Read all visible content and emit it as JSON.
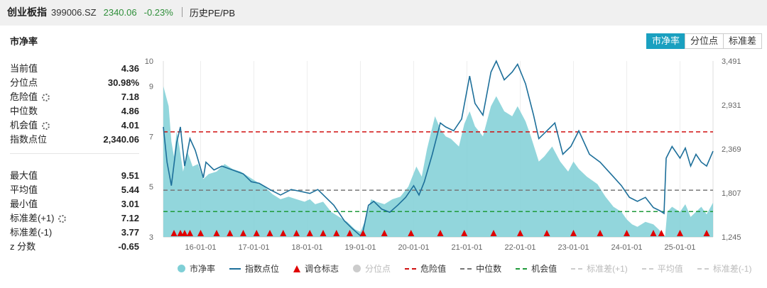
{
  "header": {
    "name": "创业板指",
    "code": "399006.SZ",
    "price": "2340.06",
    "change": "-0.23%",
    "link": "历史PE/PB"
  },
  "panel": {
    "title": "市净率",
    "tabs": [
      {
        "label": "市净率",
        "active": true
      },
      {
        "label": "分位点",
        "active": false
      },
      {
        "label": "标准差",
        "active": false
      }
    ]
  },
  "stats_top": [
    {
      "label": "当前值",
      "value": "4.36",
      "gear": false
    },
    {
      "label": "分位点",
      "value": "30.98%",
      "gear": false
    },
    {
      "label": "危险值",
      "value": "7.18",
      "gear": true
    },
    {
      "label": "中位数",
      "value": "4.86",
      "gear": false
    },
    {
      "label": "机会值",
      "value": "4.01",
      "gear": true
    },
    {
      "label": "指数点位",
      "value": "2,340.06",
      "gear": false
    }
  ],
  "stats_bottom": [
    {
      "label": "最大值",
      "value": "9.51",
      "gear": false
    },
    {
      "label": "平均值",
      "value": "5.44",
      "gear": false
    },
    {
      "label": "最小值",
      "value": "3.01",
      "gear": false
    },
    {
      "label": "标准差(+1)",
      "value": "7.12",
      "gear": true
    },
    {
      "label": "标准差(-1)",
      "value": "3.77",
      "gear": false
    },
    {
      "label": "z 分数",
      "value": "-0.65",
      "gear": false
    }
  ],
  "legend": [
    {
      "label": "市净率",
      "kind": "dot",
      "color": "#7fcfd6",
      "enabled": true
    },
    {
      "label": "指数点位",
      "kind": "line",
      "color": "#1d6f9a",
      "enabled": true
    },
    {
      "label": "调仓标志",
      "kind": "triangle",
      "color": "#e00000",
      "enabled": true
    },
    {
      "label": "分位点",
      "kind": "dot",
      "color": "#cccccc",
      "enabled": false
    },
    {
      "label": "危险值",
      "kind": "dash",
      "color": "#d01010",
      "enabled": true
    },
    {
      "label": "中位数",
      "kind": "dash",
      "color": "#777777",
      "enabled": true
    },
    {
      "label": "机会值",
      "kind": "dash",
      "color": "#1f9a3a",
      "enabled": true
    },
    {
      "label": "标准差(+1)",
      "kind": "dash",
      "color": "#cccccc",
      "enabled": false
    },
    {
      "label": "平均值",
      "kind": "dash",
      "color": "#cccccc",
      "enabled": false
    },
    {
      "label": "标准差(-1)",
      "kind": "dash",
      "color": "#cccccc",
      "enabled": false
    }
  ],
  "chart_data": {
    "type": "area",
    "x_tick_labels": [
      "16-01-01",
      "17-01-01",
      "18-01-01",
      "19-01-01",
      "20-01-01",
      "21-01-01",
      "22-01-01",
      "23-01-01",
      "24-01-01",
      "25-01-01"
    ],
    "x_tick_values": [
      2016,
      2017,
      2018,
      2019,
      2020,
      2021,
      2022,
      2023,
      2024,
      2025
    ],
    "xlim": [
      2015.3,
      2025.62
    ],
    "y_left": {
      "ticks": [
        3,
        5,
        7,
        9,
        10
      ],
      "range": [
        3,
        10
      ]
    },
    "y_right": {
      "ticks": [
        "1,245",
        "1,807",
        "2,369",
        "2,931",
        "3,491"
      ],
      "tick_values": [
        1245,
        1807,
        2369,
        2931,
        3491
      ],
      "range": [
        1245,
        3491
      ]
    },
    "reference_lines": [
      {
        "name": "危险值",
        "value": 7.18,
        "color": "#d01010"
      },
      {
        "name": "中位数",
        "value": 4.86,
        "color": "#777777"
      },
      {
        "name": "机会值",
        "value": 4.01,
        "color": "#1f9a3a"
      }
    ],
    "series": [
      {
        "name": "市净率",
        "axis": "left",
        "color": "#7fcfd6",
        "points": [
          [
            2015.3,
            9.0
          ],
          [
            2015.4,
            8.2
          ],
          [
            2015.45,
            6.8
          ],
          [
            2015.5,
            6.2
          ],
          [
            2015.55,
            7.2
          ],
          [
            2015.6,
            6.6
          ],
          [
            2015.67,
            5.6
          ],
          [
            2015.75,
            6.4
          ],
          [
            2015.85,
            5.8
          ],
          [
            2015.95,
            5.9
          ],
          [
            2016.05,
            5.3
          ],
          [
            2016.15,
            5.5
          ],
          [
            2016.3,
            5.6
          ],
          [
            2016.45,
            5.9
          ],
          [
            2016.6,
            5.7
          ],
          [
            2016.75,
            5.6
          ],
          [
            2016.9,
            5.4
          ],
          [
            2017.05,
            5.2
          ],
          [
            2017.2,
            5.0
          ],
          [
            2017.35,
            4.7
          ],
          [
            2017.5,
            4.5
          ],
          [
            2017.65,
            4.6
          ],
          [
            2017.8,
            4.5
          ],
          [
            2017.95,
            4.4
          ],
          [
            2018.05,
            4.5
          ],
          [
            2018.15,
            4.3
          ],
          [
            2018.3,
            4.4
          ],
          [
            2018.45,
            4.0
          ],
          [
            2018.6,
            3.8
          ],
          [
            2018.75,
            3.6
          ],
          [
            2018.9,
            3.3
          ],
          [
            2019.0,
            3.2
          ],
          [
            2019.1,
            3.7
          ],
          [
            2019.2,
            4.5
          ],
          [
            2019.3,
            4.4
          ],
          [
            2019.45,
            4.3
          ],
          [
            2019.6,
            4.5
          ],
          [
            2019.75,
            4.6
          ],
          [
            2019.9,
            5.0
          ],
          [
            2020.05,
            5.8
          ],
          [
            2020.15,
            5.4
          ],
          [
            2020.25,
            6.5
          ],
          [
            2020.4,
            7.8
          ],
          [
            2020.5,
            7.3
          ],
          [
            2020.6,
            7.0
          ],
          [
            2020.7,
            6.9
          ],
          [
            2020.85,
            6.6
          ],
          [
            2020.95,
            7.5
          ],
          [
            2021.05,
            8.0
          ],
          [
            2021.15,
            7.4
          ],
          [
            2021.3,
            7.0
          ],
          [
            2021.45,
            8.2
          ],
          [
            2021.55,
            8.6
          ],
          [
            2021.7,
            8.0
          ],
          [
            2021.85,
            7.8
          ],
          [
            2021.95,
            8.2
          ],
          [
            2022.1,
            7.6
          ],
          [
            2022.2,
            7.0
          ],
          [
            2022.35,
            6.0
          ],
          [
            2022.45,
            6.2
          ],
          [
            2022.6,
            6.6
          ],
          [
            2022.75,
            6.0
          ],
          [
            2022.9,
            5.6
          ],
          [
            2023.0,
            6.0
          ],
          [
            2023.1,
            5.7
          ],
          [
            2023.25,
            5.4
          ],
          [
            2023.45,
            5.1
          ],
          [
            2023.6,
            4.6
          ],
          [
            2023.75,
            4.2
          ],
          [
            2023.9,
            4.0
          ],
          [
            2024.0,
            3.7
          ],
          [
            2024.1,
            3.5
          ],
          [
            2024.2,
            3.4
          ],
          [
            2024.35,
            3.6
          ],
          [
            2024.5,
            3.5
          ],
          [
            2024.6,
            3.3
          ],
          [
            2024.68,
            3.1
          ],
          [
            2024.72,
            3.02
          ],
          [
            2024.76,
            4.0
          ],
          [
            2024.85,
            4.2
          ],
          [
            2025.0,
            4.0
          ],
          [
            2025.1,
            4.3
          ],
          [
            2025.2,
            3.8
          ],
          [
            2025.3,
            4.0
          ],
          [
            2025.4,
            4.2
          ],
          [
            2025.5,
            3.9
          ],
          [
            2025.62,
            4.36
          ]
        ]
      },
      {
        "name": "指数点位",
        "axis": "right",
        "color": "#1d6f9a",
        "points": [
          [
            2015.3,
            2650
          ],
          [
            2015.37,
            2200
          ],
          [
            2015.45,
            1900
          ],
          [
            2015.55,
            2450
          ],
          [
            2015.62,
            2650
          ],
          [
            2015.7,
            2150
          ],
          [
            2015.8,
            2500
          ],
          [
            2015.9,
            2350
          ],
          [
            2016.05,
            2000
          ],
          [
            2016.1,
            2200
          ],
          [
            2016.25,
            2100
          ],
          [
            2016.4,
            2150
          ],
          [
            2016.6,
            2100
          ],
          [
            2016.8,
            2050
          ],
          [
            2016.95,
            1950
          ],
          [
            2017.1,
            1930
          ],
          [
            2017.3,
            1850
          ],
          [
            2017.5,
            1780
          ],
          [
            2017.7,
            1850
          ],
          [
            2017.85,
            1830
          ],
          [
            2018.05,
            1800
          ],
          [
            2018.2,
            1850
          ],
          [
            2018.35,
            1750
          ],
          [
            2018.5,
            1650
          ],
          [
            2018.7,
            1450
          ],
          [
            2018.85,
            1350
          ],
          [
            2019.0,
            1260
          ],
          [
            2019.05,
            1320
          ],
          [
            2019.15,
            1650
          ],
          [
            2019.25,
            1700
          ],
          [
            2019.4,
            1600
          ],
          [
            2019.55,
            1560
          ],
          [
            2019.7,
            1650
          ],
          [
            2019.85,
            1750
          ],
          [
            2020.0,
            1900
          ],
          [
            2020.1,
            1780
          ],
          [
            2020.2,
            1950
          ],
          [
            2020.35,
            2300
          ],
          [
            2020.5,
            2700
          ],
          [
            2020.6,
            2650
          ],
          [
            2020.75,
            2600
          ],
          [
            2020.9,
            2750
          ],
          [
            2021.05,
            3300
          ],
          [
            2021.15,
            2950
          ],
          [
            2021.3,
            2800
          ],
          [
            2021.45,
            3350
          ],
          [
            2021.55,
            3490
          ],
          [
            2021.7,
            3250
          ],
          [
            2021.85,
            3350
          ],
          [
            2021.95,
            3450
          ],
          [
            2022.1,
            3200
          ],
          [
            2022.25,
            2800
          ],
          [
            2022.35,
            2500
          ],
          [
            2022.5,
            2600
          ],
          [
            2022.65,
            2700
          ],
          [
            2022.8,
            2300
          ],
          [
            2022.95,
            2400
          ],
          [
            2023.1,
            2600
          ],
          [
            2023.3,
            2300
          ],
          [
            2023.5,
            2200
          ],
          [
            2023.7,
            2050
          ],
          [
            2023.9,
            1900
          ],
          [
            2024.05,
            1750
          ],
          [
            2024.2,
            1700
          ],
          [
            2024.35,
            1750
          ],
          [
            2024.5,
            1620
          ],
          [
            2024.62,
            1580
          ],
          [
            2024.7,
            1545
          ],
          [
            2024.74,
            2250
          ],
          [
            2024.85,
            2400
          ],
          [
            2025.0,
            2250
          ],
          [
            2025.1,
            2380
          ],
          [
            2025.2,
            2150
          ],
          [
            2025.3,
            2300
          ],
          [
            2025.4,
            2200
          ],
          [
            2025.5,
            2150
          ],
          [
            2025.62,
            2340
          ]
        ]
      },
      {
        "name": "调仓标志",
        "axis": "none",
        "color": "#e00000",
        "x": [
          2015.5,
          2015.62,
          2015.7,
          2015.8,
          2016.0,
          2016.3,
          2016.55,
          2016.8,
          2017.05,
          2017.3,
          2017.55,
          2017.8,
          2018.05,
          2018.3,
          2018.55,
          2018.8,
          2019.05,
          2019.45,
          2019.95,
          2020.5,
          2020.95,
          2021.5,
          2022.0,
          2022.5,
          2023.0,
          2023.5,
          2024.0,
          2024.5,
          2024.65,
          2025.0,
          2025.5
        ]
      }
    ],
    "grid": "vertical",
    "legend_position": "bottom"
  }
}
